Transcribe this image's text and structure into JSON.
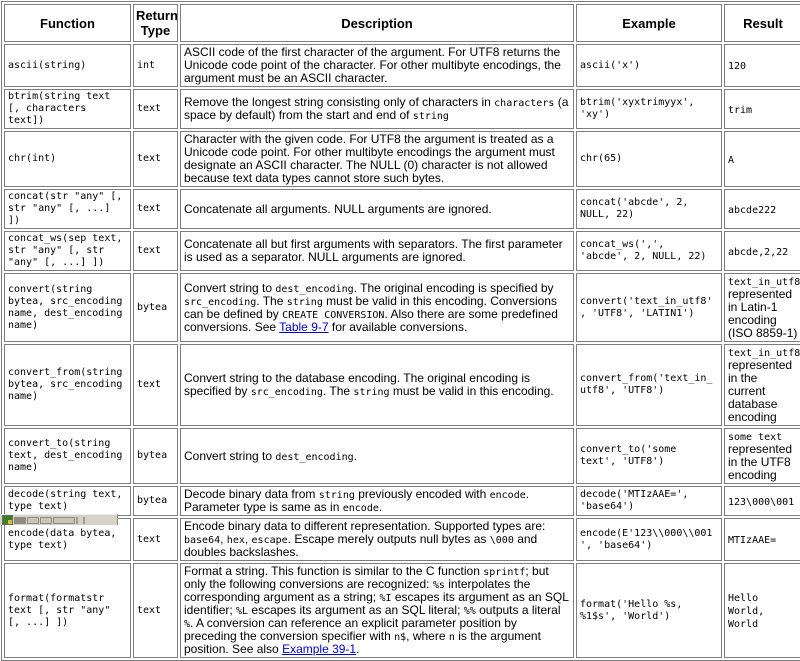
{
  "link_color": "#0000cc",
  "table": {
    "border_color": "#7e7e7e",
    "headers": [
      {
        "label": "Function"
      },
      {
        "label": "Return Type"
      },
      {
        "label": "Description"
      },
      {
        "label": "Example"
      },
      {
        "label": "Result"
      }
    ],
    "rows": [
      {
        "function": "ascii(string)",
        "return_type": "int",
        "description": [
          {
            "t": "text",
            "v": "ASCII code of the first character of the argument. For UTF8 returns the Unicode code point of the character. For other multibyte encodings, the argument must be an ASCII character."
          }
        ],
        "example": "ascii('x')",
        "result": [
          {
            "t": "code",
            "v": "120"
          }
        ]
      },
      {
        "function": "btrim(string text [, characters text])",
        "return_type": "text",
        "description": [
          {
            "t": "text",
            "v": "Remove the longest string consisting only of characters in "
          },
          {
            "t": "code",
            "v": "characters"
          },
          {
            "t": "text",
            "v": " (a space by default) from the start and end of "
          },
          {
            "t": "code",
            "v": "string"
          }
        ],
        "example": "btrim('xyxtrimyyx', 'xy')",
        "result": [
          {
            "t": "code",
            "v": "trim"
          }
        ]
      },
      {
        "function": "chr(int)",
        "return_type": "text",
        "description": [
          {
            "t": "text",
            "v": "Character with the given code. For UTF8 the argument is treated as a Unicode code point. For other multibyte encodings the argument must designate an ASCII character. The NULL (0) character is not allowed because text data types cannot store such bytes."
          }
        ],
        "example": "chr(65)",
        "result": [
          {
            "t": "code",
            "v": "A"
          }
        ]
      },
      {
        "function": "concat(str \"any\" [, str \"any\" [, ...] ])",
        "return_type": "text",
        "description": [
          {
            "t": "text",
            "v": "Concatenate all arguments. NULL arguments are ignored."
          }
        ],
        "example": "concat('abcde', 2, NULL, 22)",
        "result": [
          {
            "t": "code",
            "v": "abcde222"
          }
        ]
      },
      {
        "function": "concat_ws(sep text, str \"any\" [, str \"any\" [, ...] ])",
        "return_type": "text",
        "description": [
          {
            "t": "text",
            "v": "Concatenate all but first arguments with separators. The first parameter is used as a separator. NULL arguments are ignored."
          }
        ],
        "example": "concat_ws(',', 'abcde', 2, NULL, 22)",
        "result": [
          {
            "t": "code",
            "v": "abcde,2,22"
          }
        ]
      },
      {
        "function": "convert(string bytea, src_encoding name, dest_encoding name)",
        "return_type": "bytea",
        "description": [
          {
            "t": "text",
            "v": "Convert string to "
          },
          {
            "t": "code",
            "v": "dest_encoding"
          },
          {
            "t": "text",
            "v": ". The original encoding is specified by "
          },
          {
            "t": "code",
            "v": "src_encoding"
          },
          {
            "t": "text",
            "v": ". The "
          },
          {
            "t": "code",
            "v": "string"
          },
          {
            "t": "text",
            "v": " must be valid in this encoding. Conversions can be defined by "
          },
          {
            "t": "code",
            "v": "CREATE CONVERSION"
          },
          {
            "t": "text",
            "v": ". Also there are some predefined conversions. See "
          },
          {
            "t": "link",
            "v": "Table 9-7",
            "name": "table-9-7-link"
          },
          {
            "t": "text",
            "v": " for available conversions."
          }
        ],
        "example": "convert('text_in_utf8', 'UTF8', 'LATIN1')",
        "result": [
          {
            "t": "code",
            "v": "text_in_utf8"
          },
          {
            "t": "text",
            "v": " represented in Latin-1 encoding (ISO 8859-1)"
          }
        ]
      },
      {
        "function": "convert_from(string bytea, src_encoding name)",
        "return_type": "text",
        "description": [
          {
            "t": "text",
            "v": "Convert string to the database encoding. The original encoding is specified by "
          },
          {
            "t": "code",
            "v": "src_encoding"
          },
          {
            "t": "text",
            "v": ". The "
          },
          {
            "t": "code",
            "v": "string"
          },
          {
            "t": "text",
            "v": " must be valid in this encoding."
          }
        ],
        "example": "convert_from('text_in_utf8', 'UTF8')",
        "result": [
          {
            "t": "code",
            "v": "text_in_utf8"
          },
          {
            "t": "text",
            "v": " represented in the current database encoding"
          }
        ]
      },
      {
        "function": "convert_to(string text, dest_encoding name)",
        "return_type": "bytea",
        "description": [
          {
            "t": "text",
            "v": "Convert string to "
          },
          {
            "t": "code",
            "v": "dest_encoding"
          },
          {
            "t": "text",
            "v": "."
          }
        ],
        "example": "convert_to('some text', 'UTF8')",
        "result": [
          {
            "t": "code",
            "v": "some text"
          },
          {
            "t": "text",
            "v": " represented in the UTF8 encoding"
          }
        ]
      },
      {
        "function": "decode(string text, type text)",
        "return_type": "bytea",
        "description": [
          {
            "t": "text",
            "v": "Decode binary data from "
          },
          {
            "t": "code",
            "v": "string"
          },
          {
            "t": "text",
            "v": " previously encoded with "
          },
          {
            "t": "code",
            "v": "encode"
          },
          {
            "t": "text",
            "v": ". Parameter type is same as in "
          },
          {
            "t": "code",
            "v": "encode"
          },
          {
            "t": "text",
            "v": "."
          }
        ],
        "example": "decode('MTIzAAE=', 'base64')",
        "result": [
          {
            "t": "code",
            "v": "123\\000\\001"
          }
        ]
      },
      {
        "function": "encode(data bytea, type text)",
        "return_type": "text",
        "description": [
          {
            "t": "text",
            "v": "Encode binary data to different representation. Supported types are: "
          },
          {
            "t": "code",
            "v": "base64"
          },
          {
            "t": "text",
            "v": ", "
          },
          {
            "t": "code",
            "v": "hex"
          },
          {
            "t": "text",
            "v": ", "
          },
          {
            "t": "code",
            "v": "escape"
          },
          {
            "t": "text",
            "v": ". Escape merely outputs null bytes as "
          },
          {
            "t": "code",
            "v": "\\000"
          },
          {
            "t": "text",
            "v": " and doubles backslashes."
          }
        ],
        "example": "encode(E'123\\\\000\\\\001', 'base64')",
        "result": [
          {
            "t": "code",
            "v": "MTIzAAE="
          }
        ]
      },
      {
        "function": "format(formatstr text [, str \"any\" [, ...] ])",
        "return_type": "text",
        "description": [
          {
            "t": "text",
            "v": "Format a string. This function is similar to the C function "
          },
          {
            "t": "code",
            "v": "sprintf"
          },
          {
            "t": "text",
            "v": "; but only the following conversions are recognized: "
          },
          {
            "t": "code",
            "v": "%s"
          },
          {
            "t": "text",
            "v": " interpolates the corresponding argument as a string; "
          },
          {
            "t": "code",
            "v": "%I"
          },
          {
            "t": "text",
            "v": " escapes its argument as an SQL identifier; "
          },
          {
            "t": "code",
            "v": "%L"
          },
          {
            "t": "text",
            "v": " escapes its argument as an SQL literal; "
          },
          {
            "t": "code",
            "v": "%%"
          },
          {
            "t": "text",
            "v": " outputs a literal "
          },
          {
            "t": "code",
            "v": "%"
          },
          {
            "t": "text",
            "v": ". A conversion can reference an explicit parameter position by preceding the conversion specifier with "
          },
          {
            "t": "code",
            "v": "n$"
          },
          {
            "t": "text",
            "v": ", where "
          },
          {
            "t": "code",
            "v": "n"
          },
          {
            "t": "text",
            "v": " is the argument position. See also "
          },
          {
            "t": "link",
            "v": "Example 39-1",
            "name": "example-39-1-link"
          },
          {
            "t": "text",
            "v": "."
          }
        ],
        "example": "format('Hello %s, %1$s', 'World')",
        "result": [
          {
            "t": "code",
            "v": "Hello World, World"
          }
        ]
      }
    ]
  },
  "ime_bar": {
    "icons": [
      "input-method-logo-icon",
      "mode-cell",
      "mode-cell",
      "keyboard-cell",
      "toolbar-cell",
      "grip-handle"
    ]
  }
}
